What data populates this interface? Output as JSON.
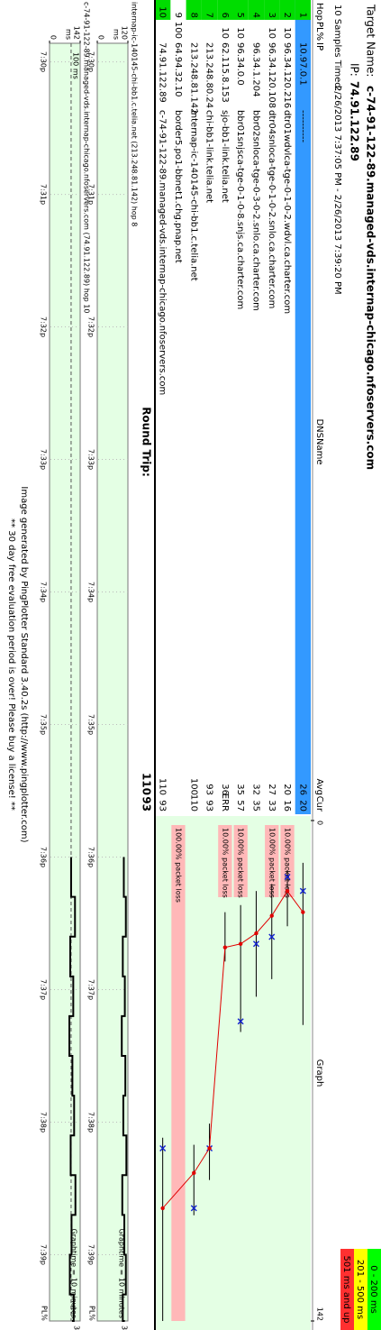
{
  "header": {
    "target_label": "Target Name:",
    "target": "c-74-91-122-89.managed-vds.internap-chicago.nfoservers.com",
    "ip_label": "IP:",
    "ip": "74.91.122.89",
    "samples_label": "10 Samples Timed:",
    "time_range": "2/26/2013 7:37:05 PM - 2/26/2013 7:39:20 PM"
  },
  "legend": [
    {
      "label": "0 - 200 ms",
      "color": "#00ff00"
    },
    {
      "label": "201 - 500 ms",
      "color": "#ffff00"
    },
    {
      "label": "501 ms and up",
      "color": "#ff3030"
    }
  ],
  "table": {
    "columns": [
      "Hop",
      "PL%",
      "IP",
      "DNSName",
      "Avg",
      "Cur",
      "Graph"
    ],
    "rows": [
      {
        "hop": 1,
        "ip": "10.97.0.1",
        "dns": "----------",
        "avg": 26,
        "cur": 20,
        "min": 12,
        "max": 58
      },
      {
        "hop": 2,
        "pl": 10,
        "ip": "96.34.120.216",
        "dns": "dtr01wdvlca-tge-0-1-0-2.wdvl.ca.charter.com",
        "avg": 20,
        "cur": 16,
        "min": 14,
        "max": 30,
        "loss": "10.00% packet loss"
      },
      {
        "hop": 3,
        "pl": 10,
        "ip": "96.34.120.108",
        "dns": "dtr04snloca-tge-0-1-0-2.snlo.ca.charter.com",
        "avg": 27,
        "cur": 33,
        "min": 18,
        "max": 45,
        "loss": "10.00% packet loss"
      },
      {
        "hop": 4,
        "ip": "96.34.1.204",
        "dns": "bbr02snloca-tge-0-3-0-2.snlo.ca.charter.com",
        "avg": 32,
        "cur": 35,
        "min": 20,
        "max": 50
      },
      {
        "hop": 5,
        "pl": 10,
        "ip": "96.34.0.0",
        "dns": "bbr01snjsca-tge-0-1-0-8.snjs.ca.charter.com",
        "avg": 35,
        "cur": 57,
        "min": 24,
        "max": 60,
        "loss": "10.00% packet loss"
      },
      {
        "hop": 6,
        "pl": 10,
        "ip": "62.115.8.153",
        "dns": "sjo-bb1-link.telia.net",
        "avg": 36,
        "cur": "ERR",
        "min": 26,
        "max": 40,
        "loss": "10.00% packet loss"
      },
      {
        "hop": 7,
        "ip": "213.248.80.24",
        "dns": "chi-bb1-link.telia.net",
        "avg": 93,
        "cur": 93,
        "min": 86,
        "max": 102
      },
      {
        "hop": 8,
        "ip": "213.248.81.142",
        "dns": "internap-ic-140145-chi-bb1.c.telia.net",
        "avg": 100,
        "cur": 110,
        "min": 92,
        "max": 112
      },
      {
        "hop": 9,
        "pl": 100,
        "ip": "64.94.32.10",
        "dns": "border5.po1-bbnet1.chg.pnap.net",
        "loss": "100.00% packet loss"
      },
      {
        "hop": 10,
        "ip": "74.91.122.89",
        "dns": "c-74-91-122-89.managed-vds.internap-chicago.nfoservers.com",
        "avg": 110,
        "cur": 93,
        "min": 90,
        "max": 142
      }
    ]
  },
  "round_trip": {
    "label": "Round Trip:",
    "avg": 110,
    "cur": 93
  },
  "graph": {
    "xlim": [
      0,
      142
    ],
    "xticks": [
      0,
      142
    ]
  },
  "time_axis": {
    "xlim": [
      -0.14,
      9.5
    ],
    "ticks": [
      {
        "value": 0,
        "label": "7:30p"
      },
      {
        "value": 1,
        "label": "7:31p"
      },
      {
        "value": 2,
        "label": "7:32p"
      },
      {
        "value": 3,
        "label": "7:33p"
      },
      {
        "value": 4,
        "label": "7:34p"
      },
      {
        "value": 5,
        "label": "7:35p"
      },
      {
        "value": 6,
        "label": "7:36p"
      },
      {
        "value": 7,
        "label": "7:37p"
      },
      {
        "value": 8,
        "label": "7:38p"
      },
      {
        "value": 9,
        "label": "7:39p"
      }
    ]
  },
  "timelines": [
    {
      "title": "internap-ic-140145-chi-bb1.c.telia.net (213.248.81.142) hop 8",
      "ylim": [
        0,
        120
      ],
      "yticks": [
        0,
        120
      ],
      "unit": "ms",
      "pl_max": 30,
      "pl_label": "PL%",
      "graphtime": "Graphtime = 10 minutes",
      "x": [
        6.0,
        6.3,
        6.6,
        6.9,
        7.2,
        7.5,
        7.8,
        8.1,
        8.4,
        8.7,
        9.0,
        9.3,
        9.5
      ],
      "values": [
        104,
        112,
        100,
        108,
        96,
        110,
        102,
        114,
        98,
        106,
        112,
        100,
        108
      ]
    },
    {
      "title": "c-74-91-122-89.managed-vds.internap-chicago.nfoservers.com (74.91.122.89) hop 10",
      "ylim": [
        0,
        142
      ],
      "yticks": [
        0,
        142
      ],
      "unit": "ms",
      "pl_max": 30,
      "pl_label": "PL%",
      "graphtime": "Graphtime = 10 minutes",
      "ref_line": {
        "value": 100,
        "label": "100 ms"
      },
      "x": [
        6.0,
        6.3,
        6.6,
        6.9,
        7.2,
        7.5,
        7.8,
        8.1,
        8.4,
        8.7,
        9.0,
        9.3,
        9.5
      ],
      "values": [
        100,
        118,
        96,
        110,
        92,
        106,
        114,
        98,
        120,
        102,
        94,
        112,
        104
      ]
    }
  ],
  "footer": [
    "Image generated by PingPlotter Standard 3.40.2s (http://www.pingplotter.com)",
    "** 30 day free evaluation period is over!  Please buy a license! **"
  ]
}
